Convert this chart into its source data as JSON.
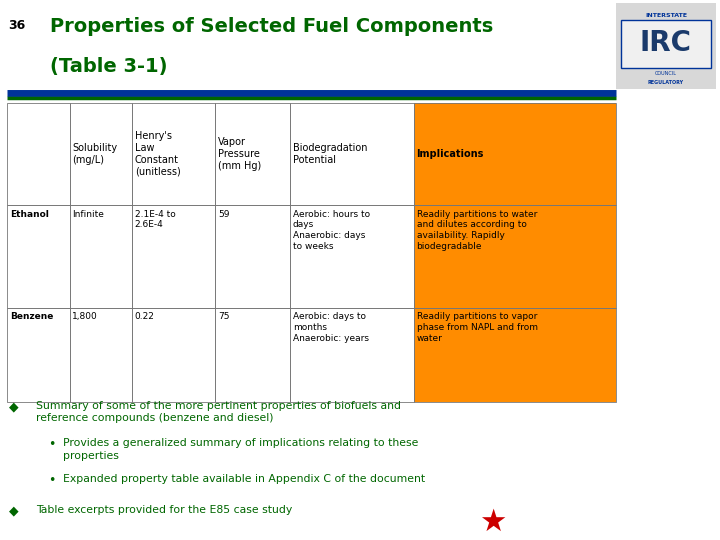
{
  "title_num": "36",
  "title_line1": "Properties of Selected Fuel Components",
  "title_line2": "(Table 3-1)",
  "title_color": "#006600",
  "bg_color": "#ffffff",
  "implication_header_bg": "#FF8C00",
  "implication_cell_bg": "#FF8C00",
  "separator_color1": "#003399",
  "separator_color2": "#006600",
  "col_headers": [
    "Solubility\n(mg/L)",
    "Henry's\nLaw\nConstant\n(unitless)",
    "Vapor\nPressure\n(mm Hg)",
    "Biodegradation\nPotential",
    "Implications"
  ],
  "row_labels": [
    "Ethanol",
    "Benzene"
  ],
  "cell_data": [
    [
      "Infinite",
      "2.1E-4 to\n2.6E-4",
      "59",
      "Aerobic: hours to\ndays\nAnaerobic: days\nto weeks",
      "Readily partitions to water\nand dilutes according to\navailability. Rapidly\nbiodegradable"
    ],
    [
      "1,800",
      "0.22",
      "75",
      "Aerobic: days to\nmonths\nAnaerobic: years",
      "Readily partitions to vapor\nphase from NAPL and from\nwater"
    ]
  ],
  "bullet_color": "#006600",
  "bullet1": "Summary of some of the more pertinent properties of biofuels and\nreference compounds (benzene and diesel)",
  "bullet2a": "Provides a generalized summary of implications relating to these\nproperties",
  "bullet2b": "Expanded property table available in Appendix C of the document",
  "bullet3": "Table excerpts provided for the E85 case study",
  "star_color": "#cc0000",
  "title_font_size": 14
}
